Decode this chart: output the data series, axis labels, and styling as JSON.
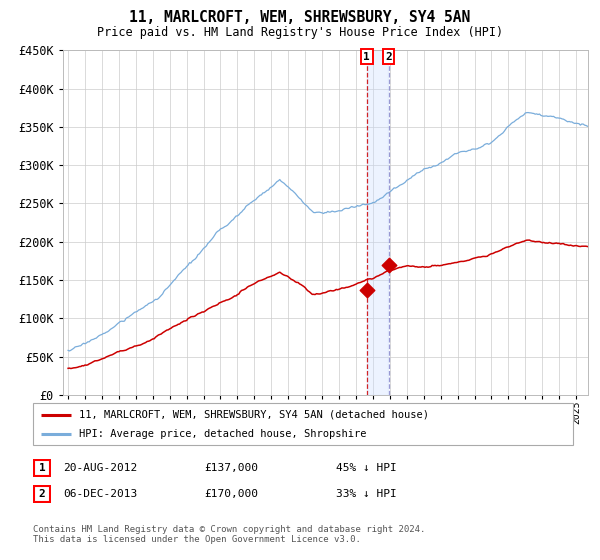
{
  "title": "11, MARLCROFT, WEM, SHREWSBURY, SY4 5AN",
  "subtitle": "Price paid vs. HM Land Registry's House Price Index (HPI)",
  "ylim": [
    0,
    450000
  ],
  "yticks": [
    0,
    50000,
    100000,
    150000,
    200000,
    250000,
    300000,
    350000,
    400000,
    450000
  ],
  "ytick_labels": [
    "£0",
    "£50K",
    "£100K",
    "£150K",
    "£200K",
    "£250K",
    "£300K",
    "£350K",
    "£400K",
    "£450K"
  ],
  "xlim_start": 1994.7,
  "xlim_end": 2025.7,
  "hpi_color": "#7aaddb",
  "property_color": "#cc0000",
  "transaction1_date": 2012.64,
  "transaction1_price": 137000,
  "transaction1_label": "1",
  "transaction1_date_str": "20-AUG-2012",
  "transaction1_pct": "45% ↓ HPI",
  "transaction2_date": 2013.92,
  "transaction2_price": 170000,
  "transaction2_label": "2",
  "transaction2_date_str": "06-DEC-2013",
  "transaction2_pct": "33% ↓ HPI",
  "legend_line1": "11, MARLCROFT, WEM, SHREWSBURY, SY4 5AN (detached house)",
  "legend_line2": "HPI: Average price, detached house, Shropshire",
  "footer": "Contains HM Land Registry data © Crown copyright and database right 2024.\nThis data is licensed under the Open Government Licence v3.0.",
  "background_color": "#ffffff",
  "grid_color": "#cccccc"
}
